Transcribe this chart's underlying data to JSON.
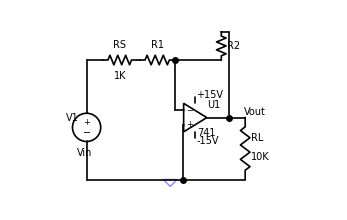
{
  "bg_color": "#ffffff",
  "line_color": "#000000",
  "dot_color": "#000000",
  "ground_color": "#8888ff",
  "components": {
    "RS_label": "RS",
    "RS_val": "1K",
    "R1_label": "R1",
    "R2_label": "R2",
    "RL_label": "RL",
    "RL_val": "10K",
    "opamp_label": "U1",
    "opamp_model": "741",
    "vpos": "+15V",
    "vneg": "-15V",
    "vout_label": "Vout",
    "vin_label": "Vin",
    "v1_label": "V1"
  }
}
